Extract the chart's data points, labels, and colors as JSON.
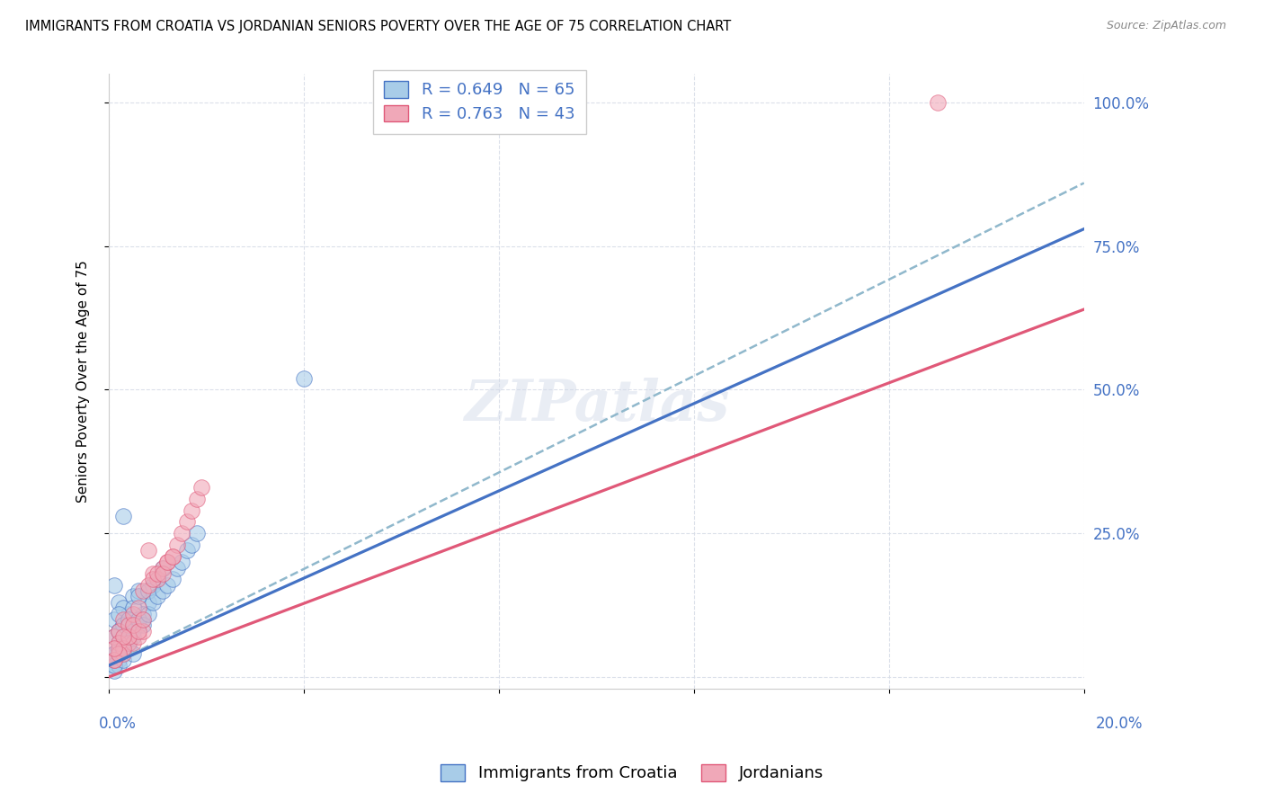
{
  "title": "IMMIGRANTS FROM CROATIA VS JORDANIAN SENIORS POVERTY OVER THE AGE OF 75 CORRELATION CHART",
  "source": "Source: ZipAtlas.com",
  "ylabel": "Seniors Poverty Over the Age of 75",
  "yticks": [
    0.0,
    0.25,
    0.5,
    0.75,
    1.0
  ],
  "ytick_labels": [
    "",
    "25.0%",
    "50.0%",
    "75.0%",
    "100.0%"
  ],
  "xticks": [
    0.0,
    0.04,
    0.08,
    0.12,
    0.16,
    0.2
  ],
  "xlim": [
    0.0,
    0.2
  ],
  "ylim": [
    -0.02,
    1.05
  ],
  "watermark": "ZIPatlas",
  "legend_entries": [
    {
      "label": "R = 0.649   N = 65",
      "color": "#a8cce8"
    },
    {
      "label": "R = 0.763   N = 43",
      "color": "#f0a8b8"
    }
  ],
  "legend_xlabel": [
    "Immigrants from Croatia",
    "Jordanians"
  ],
  "blue_color": "#a8cce8",
  "pink_color": "#f0a8b8",
  "line_blue": "#4472c4",
  "line_pink": "#e05878",
  "line_dashed_color": "#90b8cc",
  "background_color": "#ffffff",
  "grid_color": "#d8dde8",
  "blue_line_slope": 3.8,
  "blue_line_intercept": 0.02,
  "pink_line_slope": 3.2,
  "pink_line_intercept": 0.0,
  "dashed_line_slope": 4.2,
  "dashed_line_intercept": 0.02,
  "croatia_points": [
    [
      0.001,
      0.04
    ],
    [
      0.002,
      0.05
    ],
    [
      0.002,
      0.08
    ],
    [
      0.003,
      0.06
    ],
    [
      0.001,
      0.1
    ],
    [
      0.003,
      0.09
    ],
    [
      0.004,
      0.11
    ],
    [
      0.002,
      0.13
    ],
    [
      0.005,
      0.07
    ],
    [
      0.001,
      0.16
    ],
    [
      0.006,
      0.09
    ],
    [
      0.003,
      0.12
    ],
    [
      0.004,
      0.08
    ],
    [
      0.002,
      0.06
    ],
    [
      0.007,
      0.1
    ],
    [
      0.001,
      0.04
    ],
    [
      0.003,
      0.07
    ],
    [
      0.005,
      0.14
    ],
    [
      0.002,
      0.11
    ],
    [
      0.004,
      0.05
    ],
    [
      0.006,
      0.15
    ],
    [
      0.008,
      0.13
    ],
    [
      0.003,
      0.09
    ],
    [
      0.001,
      0.07
    ],
    [
      0.009,
      0.16
    ],
    [
      0.007,
      0.11
    ],
    [
      0.005,
      0.12
    ],
    [
      0.01,
      0.17
    ],
    [
      0.004,
      0.1
    ],
    [
      0.002,
      0.08
    ],
    [
      0.011,
      0.19
    ],
    [
      0.006,
      0.14
    ],
    [
      0.008,
      0.15
    ],
    [
      0.003,
      0.06
    ],
    [
      0.001,
      0.02
    ],
    [
      0.001,
      0.03
    ],
    [
      0.002,
      0.03
    ],
    [
      0.003,
      0.04
    ],
    [
      0.001,
      0.03
    ],
    [
      0.002,
      0.05
    ],
    [
      0.004,
      0.06
    ],
    [
      0.002,
      0.04
    ],
    [
      0.003,
      0.05
    ],
    [
      0.004,
      0.07
    ],
    [
      0.005,
      0.08
    ],
    [
      0.006,
      0.1
    ],
    [
      0.007,
      0.09
    ],
    [
      0.008,
      0.11
    ],
    [
      0.009,
      0.13
    ],
    [
      0.01,
      0.14
    ],
    [
      0.011,
      0.15
    ],
    [
      0.012,
      0.16
    ],
    [
      0.013,
      0.17
    ],
    [
      0.014,
      0.19
    ],
    [
      0.015,
      0.2
    ],
    [
      0.016,
      0.22
    ],
    [
      0.017,
      0.23
    ],
    [
      0.018,
      0.25
    ],
    [
      0.003,
      0.28
    ],
    [
      0.04,
      0.52
    ],
    [
      0.001,
      0.01
    ],
    [
      0.002,
      0.02
    ],
    [
      0.001,
      0.02
    ],
    [
      0.003,
      0.03
    ],
    [
      0.005,
      0.04
    ]
  ],
  "jordan_points": [
    [
      0.001,
      0.03
    ],
    [
      0.002,
      0.05
    ],
    [
      0.003,
      0.04
    ],
    [
      0.001,
      0.07
    ],
    [
      0.004,
      0.06
    ],
    [
      0.002,
      0.08
    ],
    [
      0.005,
      0.06
    ],
    [
      0.003,
      0.1
    ],
    [
      0.001,
      0.03
    ],
    [
      0.006,
      0.07
    ],
    [
      0.004,
      0.09
    ],
    [
      0.002,
      0.06
    ],
    [
      0.007,
      0.08
    ],
    [
      0.005,
      0.11
    ],
    [
      0.003,
      0.05
    ],
    [
      0.008,
      0.22
    ],
    [
      0.006,
      0.12
    ],
    [
      0.009,
      0.18
    ],
    [
      0.007,
      0.15
    ],
    [
      0.01,
      0.17
    ],
    [
      0.004,
      0.07
    ],
    [
      0.011,
      0.19
    ],
    [
      0.008,
      0.16
    ],
    [
      0.012,
      0.2
    ],
    [
      0.005,
      0.09
    ],
    [
      0.013,
      0.21
    ],
    [
      0.009,
      0.17
    ],
    [
      0.014,
      0.23
    ],
    [
      0.01,
      0.18
    ],
    [
      0.015,
      0.25
    ],
    [
      0.006,
      0.08
    ],
    [
      0.016,
      0.27
    ],
    [
      0.011,
      0.18
    ],
    [
      0.017,
      0.29
    ],
    [
      0.012,
      0.2
    ],
    [
      0.018,
      0.31
    ],
    [
      0.007,
      0.1
    ],
    [
      0.019,
      0.33
    ],
    [
      0.013,
      0.21
    ],
    [
      0.002,
      0.04
    ],
    [
      0.003,
      0.07
    ],
    [
      0.001,
      0.05
    ],
    [
      0.17,
      1.0
    ]
  ]
}
